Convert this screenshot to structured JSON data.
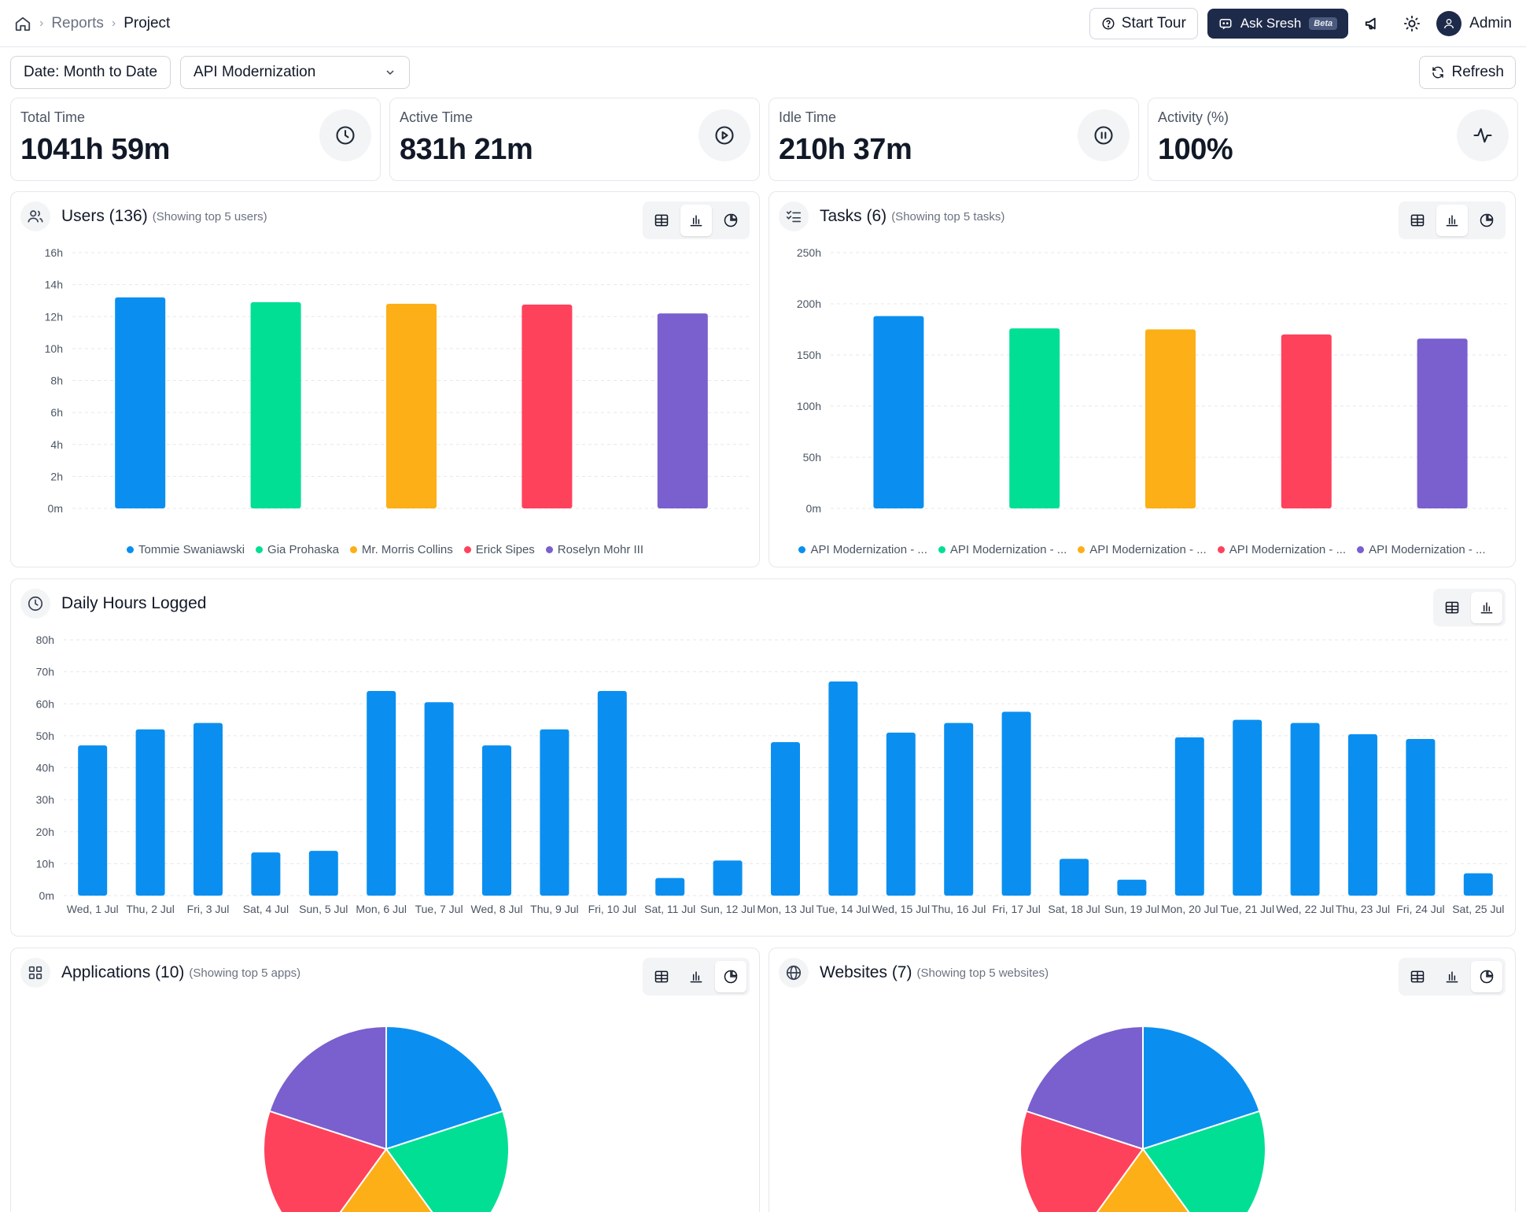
{
  "breadcrumb": {
    "items": [
      "Reports",
      "Project"
    ]
  },
  "header": {
    "start_tour": "Start Tour",
    "ask_label": "Ask Sresh",
    "beta": "Beta",
    "user": "Admin"
  },
  "filters": {
    "date": "Date: Month to Date",
    "project": "API Modernization",
    "refresh": "Refresh"
  },
  "stats": [
    {
      "label": "Total Time",
      "value": "1041h 59m",
      "icon": "clock-icon"
    },
    {
      "label": "Active Time",
      "value": "831h 21m",
      "icon": "play-circle-icon"
    },
    {
      "label": "Idle Time",
      "value": "210h 37m",
      "icon": "pause-circle-icon"
    },
    {
      "label": "Activity (%)",
      "value": "100%",
      "icon": "activity-icon"
    }
  ],
  "colors": {
    "series": [
      "#0a8ff0",
      "#00df93",
      "#fcaf17",
      "#ff425c",
      "#7a5fce"
    ],
    "daily": "#0a8ff0"
  },
  "panels": {
    "users": {
      "title": "Users (136)",
      "subtitle": "(Showing top 5 users)"
    },
    "tasks": {
      "title": "Tasks (6)",
      "subtitle": "(Showing top 5 tasks)"
    },
    "daily": {
      "title": "Daily Hours Logged"
    },
    "apps": {
      "title": "Applications (10)",
      "subtitle": "(Showing top 5 apps)"
    },
    "websites": {
      "title": "Websites (7)",
      "subtitle": "(Showing top 5 websites)"
    }
  },
  "chart_data": [
    {
      "id": "users",
      "type": "bar",
      "categories": [
        "Tommie Swaniawski",
        "Gia Prohaska",
        "Mr. Morris Collins",
        "Erick Sipes",
        "Roselyn Mohr III"
      ],
      "values": [
        13.2,
        12.9,
        12.8,
        12.75,
        12.2
      ],
      "yticks": [
        "0m",
        "2h",
        "4h",
        "6h",
        "8h",
        "10h",
        "12h",
        "14h",
        "16h"
      ],
      "ylim": [
        0,
        16
      ],
      "grid": true,
      "legend": "bottom"
    },
    {
      "id": "tasks",
      "type": "bar",
      "categories": [
        "API Modernization - ...",
        "API Modernization - ...",
        "API Modernization - ...",
        "API Modernization - ...",
        "API Modernization - ..."
      ],
      "values": [
        188,
        176,
        175,
        170,
        166
      ],
      "yticks": [
        "0m",
        "50h",
        "100h",
        "150h",
        "200h",
        "250h"
      ],
      "ylim": [
        0,
        250
      ],
      "grid": true,
      "legend": "bottom"
    },
    {
      "id": "daily",
      "type": "bar",
      "categories": [
        "Wed, 1 Jul",
        "Thu, 2 Jul",
        "Fri, 3 Jul",
        "Sat, 4 Jul",
        "Sun, 5 Jul",
        "Mon, 6 Jul",
        "Tue, 7 Jul",
        "Wed, 8 Jul",
        "Thu, 9 Jul",
        "Fri, 10 Jul",
        "Sat, 11 Jul",
        "Sun, 12 Jul",
        "Mon, 13 Jul",
        "Tue, 14 Jul",
        "Wed, 15 Jul",
        "Thu, 16 Jul",
        "Fri, 17 Jul",
        "Sat, 18 Jul",
        "Sun, 19 Jul",
        "Mon, 20 Jul",
        "Tue, 21 Jul",
        "Wed, 22 Jul",
        "Thu, 23 Jul",
        "Fri, 24 Jul",
        "Sat, 25 Jul"
      ],
      "values": [
        47,
        52,
        54,
        13.5,
        14,
        64,
        60.5,
        47,
        52,
        64,
        5.5,
        11,
        48,
        67,
        51,
        54,
        57.5,
        11.5,
        5,
        49.5,
        55,
        54,
        50.5,
        49,
        7
      ],
      "yticks": [
        "0m",
        "10h",
        "20h",
        "30h",
        "40h",
        "50h",
        "60h",
        "70h",
        "80h"
      ],
      "ylim": [
        0,
        80
      ],
      "grid": true
    },
    {
      "id": "apps",
      "type": "pie",
      "values": [
        20,
        20,
        20,
        20,
        20
      ]
    },
    {
      "id": "websites",
      "type": "pie",
      "values": [
        20,
        20,
        20,
        20,
        20
      ]
    }
  ]
}
